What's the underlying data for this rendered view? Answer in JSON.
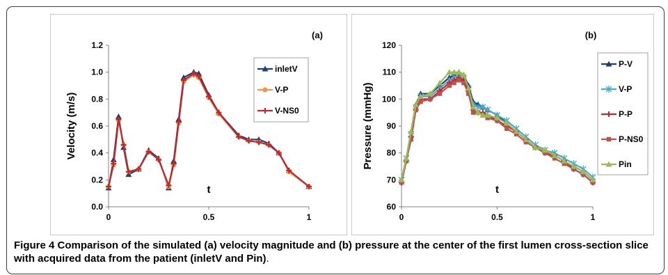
{
  "caption": {
    "figure_label": "Figure 4",
    "text": " Comparison of the simulated (a) velocity magnitude and (b) pressure at the center of the first lumen cross-section slice with acquired data from the patient (inletV and Pin)",
    "end": "."
  },
  "chart_data": [
    {
      "type": "line",
      "panel_label": "(a)",
      "xlabel": "t",
      "ylabel": "Velocity (m/s)",
      "xlim": [
        0,
        1
      ],
      "ylim": [
        0,
        1.2
      ],
      "xticks": [
        0,
        0.5,
        1
      ],
      "xtick_labels": [
        "0",
        "0.5",
        "1"
      ],
      "yticks": [
        0,
        0.2,
        0.4,
        0.6,
        0.8,
        1.0,
        1.2
      ],
      "ytick_labels": [
        "0.0",
        "0.2",
        "0.4",
        "0.6",
        "0.8",
        "1.0",
        "1.2"
      ],
      "grid": false,
      "legend_position": "top-right",
      "series": [
        {
          "name": "inletV",
          "color": "#1f3d7a",
          "marker": "triangle",
          "x": [
            0,
            0.025,
            0.05,
            0.075,
            0.1,
            0.15,
            0.2,
            0.25,
            0.3,
            0.325,
            0.35,
            0.375,
            0.425,
            0.45,
            0.5,
            0.55,
            0.65,
            0.7,
            0.75,
            0.8,
            0.85,
            0.9,
            1.0
          ],
          "y": [
            0.14,
            0.35,
            0.67,
            0.44,
            0.24,
            0.28,
            0.42,
            0.36,
            0.14,
            0.34,
            0.65,
            0.96,
            1.0,
            0.99,
            0.83,
            0.7,
            0.53,
            0.5,
            0.5,
            0.47,
            0.4,
            0.27,
            0.15
          ]
        },
        {
          "name": "V-P",
          "color": "#f79646",
          "marker": "circle",
          "x": [
            0,
            0.025,
            0.05,
            0.075,
            0.1,
            0.15,
            0.2,
            0.25,
            0.3,
            0.325,
            0.35,
            0.375,
            0.425,
            0.45,
            0.5,
            0.55,
            0.65,
            0.7,
            0.75,
            0.8,
            0.85,
            0.9,
            1.0
          ],
          "y": [
            0.15,
            0.31,
            0.64,
            0.46,
            0.26,
            0.28,
            0.41,
            0.35,
            0.15,
            0.31,
            0.62,
            0.93,
            0.98,
            0.96,
            0.81,
            0.69,
            0.52,
            0.49,
            0.48,
            0.46,
            0.4,
            0.26,
            0.15
          ]
        },
        {
          "name": "V-NS0",
          "color": "#c0262c",
          "marker": "plus",
          "x": [
            0,
            0.025,
            0.05,
            0.075,
            0.1,
            0.15,
            0.2,
            0.25,
            0.3,
            0.325,
            0.35,
            0.375,
            0.425,
            0.45,
            0.5,
            0.55,
            0.65,
            0.7,
            0.75,
            0.8,
            0.85,
            0.9,
            1.0
          ],
          "y": [
            0.15,
            0.32,
            0.65,
            0.46,
            0.26,
            0.28,
            0.41,
            0.35,
            0.16,
            0.32,
            0.63,
            0.94,
            0.99,
            0.97,
            0.82,
            0.7,
            0.52,
            0.49,
            0.48,
            0.46,
            0.4,
            0.27,
            0.15
          ]
        }
      ]
    },
    {
      "type": "line",
      "panel_label": "(b)",
      "xlabel": "t",
      "ylabel": "Pressure (mmHg)",
      "xlim": [
        0,
        1
      ],
      "ylim": [
        60,
        120
      ],
      "xticks": [
        0,
        0.5,
        1
      ],
      "xtick_labels": [
        "0",
        "0.5",
        "1"
      ],
      "yticks": [
        60,
        70,
        80,
        90,
        100,
        110,
        120
      ],
      "ytick_labels": [
        "60",
        "70",
        "80",
        "90",
        "100",
        "110",
        "120"
      ],
      "grid": false,
      "legend_position": "top-right",
      "series": [
        {
          "name": "P-V",
          "color": "#1f3d7a",
          "marker": "triangle",
          "x": [
            0,
            0.025,
            0.05,
            0.075,
            0.1,
            0.15,
            0.2,
            0.25,
            0.275,
            0.3,
            0.325,
            0.35,
            0.375,
            0.4,
            0.425,
            0.45,
            0.5,
            0.55,
            0.6,
            0.65,
            0.7,
            0.75,
            0.8,
            0.85,
            0.9,
            0.95,
            1.0
          ],
          "y": [
            70,
            78,
            88,
            98,
            102,
            102,
            105,
            108,
            109,
            110,
            109,
            105,
            99,
            98,
            97,
            96,
            94,
            91,
            88,
            85,
            82,
            81,
            79,
            77,
            75,
            73,
            70
          ]
        },
        {
          "name": "V-P",
          "color": "#4bacc6",
          "marker": "star",
          "x": [
            0,
            0.025,
            0.05,
            0.075,
            0.1,
            0.15,
            0.2,
            0.25,
            0.275,
            0.3,
            0.325,
            0.35,
            0.375,
            0.4,
            0.425,
            0.45,
            0.5,
            0.55,
            0.6,
            0.65,
            0.7,
            0.75,
            0.8,
            0.85,
            0.9,
            0.95,
            1.0
          ],
          "y": [
            70,
            78,
            87,
            97,
            101,
            101,
            104,
            107,
            108,
            109,
            108,
            104,
            98,
            97,
            97,
            96,
            94,
            92,
            89,
            86,
            83,
            81,
            80,
            78,
            76,
            74,
            71
          ]
        },
        {
          "name": "P-P",
          "color": "#c0262c",
          "marker": "plus",
          "x": [
            0,
            0.025,
            0.05,
            0.075,
            0.1,
            0.15,
            0.2,
            0.25,
            0.275,
            0.3,
            0.325,
            0.35,
            0.375,
            0.4,
            0.425,
            0.45,
            0.5,
            0.55,
            0.6,
            0.65,
            0.7,
            0.75,
            0.8,
            0.85,
            0.9,
            0.95,
            1.0
          ],
          "y": [
            69,
            77,
            86,
            96,
            100,
            100,
            103,
            106,
            107,
            108,
            107,
            103,
            96,
            95,
            95,
            94,
            92,
            90,
            88,
            85,
            82,
            80,
            79,
            77,
            74,
            72,
            69
          ]
        },
        {
          "name": "P-NS0",
          "color": "#c0504d",
          "marker": "square",
          "x": [
            0,
            0.025,
            0.05,
            0.075,
            0.1,
            0.15,
            0.2,
            0.25,
            0.275,
            0.3,
            0.325,
            0.35,
            0.375,
            0.4,
            0.425,
            0.45,
            0.5,
            0.55,
            0.6,
            0.65,
            0.7,
            0.75,
            0.8,
            0.85,
            0.9,
            0.95,
            1.0
          ],
          "y": [
            69,
            77,
            85,
            96,
            99,
            100,
            102,
            105,
            106,
            107,
            106,
            102,
            95,
            95,
            94,
            93,
            92,
            89,
            87,
            84,
            82,
            80,
            78,
            76,
            74,
            72,
            69
          ]
        },
        {
          "name": "Pin",
          "color": "#9bbb59",
          "marker": "triangle",
          "x": [
            0,
            0.025,
            0.05,
            0.075,
            0.1,
            0.15,
            0.2,
            0.25,
            0.275,
            0.3,
            0.325,
            0.35,
            0.375,
            0.4,
            0.425,
            0.45,
            0.5,
            0.55,
            0.6,
            0.65,
            0.7,
            0.75,
            0.8,
            0.85,
            0.9,
            0.95,
            1.0
          ],
          "y": [
            70,
            78,
            88,
            98,
            101,
            102,
            106,
            110,
            110,
            110,
            109,
            104,
            97,
            95,
            94,
            94,
            93,
            91,
            88,
            85,
            82,
            81,
            79,
            77,
            75,
            73,
            70
          ]
        }
      ]
    }
  ]
}
